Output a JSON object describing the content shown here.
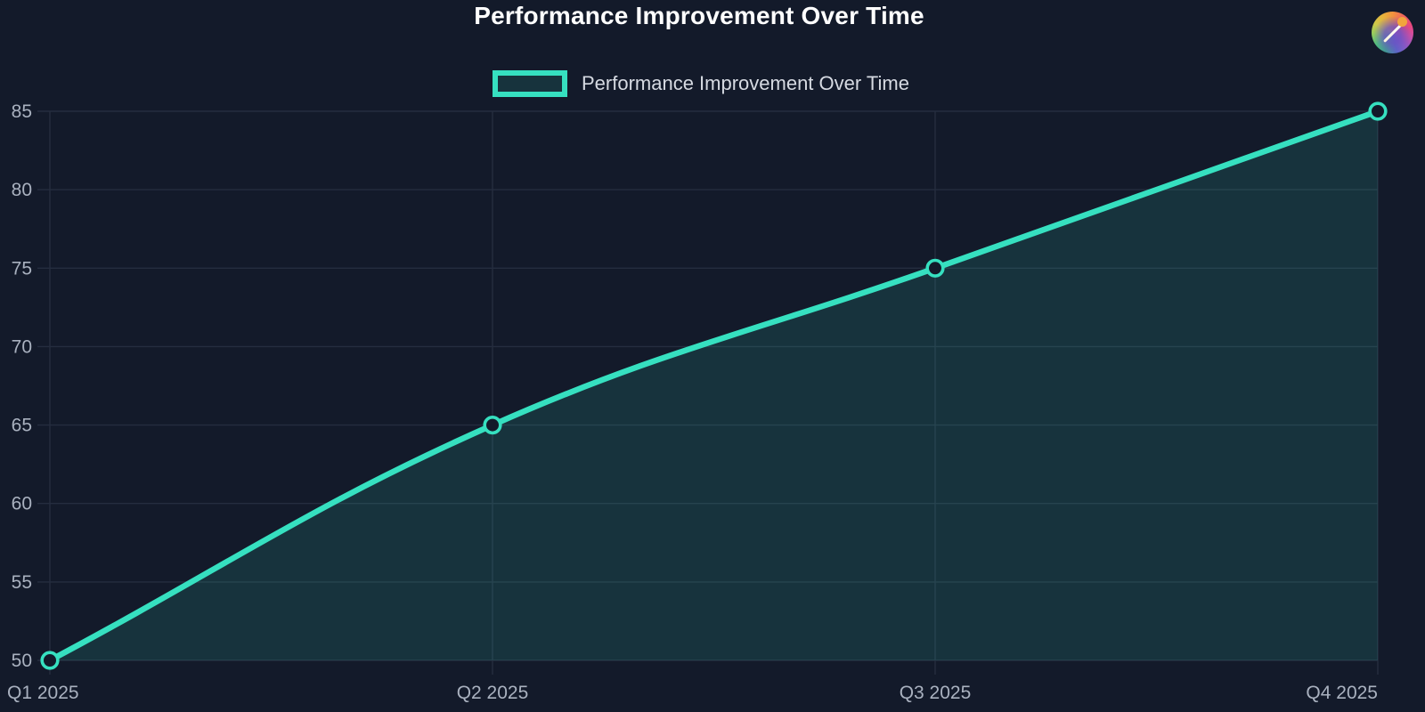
{
  "app": {
    "logo_icon": "gradient-compass-logo"
  },
  "header": {
    "title": "Performance Improvement Over Time"
  },
  "legend": {
    "label": "Performance Improvement Over Time"
  },
  "chart_data": {
    "type": "line",
    "title": "Performance Improvement Over Time",
    "categories": [
      "Q1 2025",
      "Q2 2025",
      "Q3 2025",
      "Q4 2025"
    ],
    "series": [
      {
        "name": "Performance Improvement Over Time",
        "values": [
          50,
          65,
          75,
          85
        ]
      }
    ],
    "xlabel": "",
    "ylabel": "",
    "ylim": [
      50,
      85
    ],
    "yticks": [
      50,
      55,
      60,
      65,
      70,
      75,
      80,
      85
    ],
    "grid": true,
    "legend_position": "top",
    "line_style": {
      "curve": "smooth",
      "tension": 0.4,
      "point": "open-circle",
      "area_fill": true
    }
  },
  "colors": {
    "background": "#131a2a",
    "line": "#36e0c0",
    "area-fill": "rgba(54, 224, 192, 0.13)",
    "grid": "#252d3f",
    "tick-text": "#a9b1bf",
    "legend-text": "#d6dae2",
    "title-text": "#ffffff",
    "marker-fill": "#131a2a"
  }
}
